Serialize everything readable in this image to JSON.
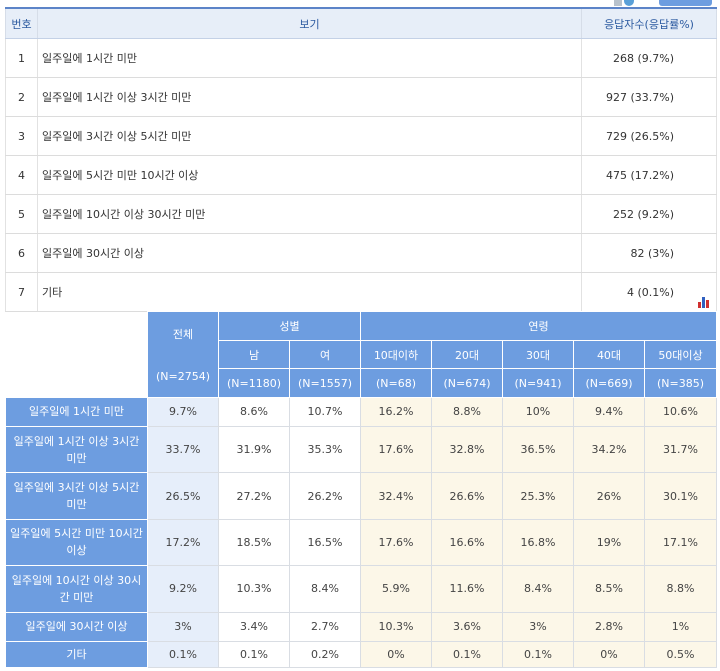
{
  "table1": {
    "headers": {
      "no": "번호",
      "option": "보기",
      "count": "응답자수(응답률%)"
    },
    "rows": [
      {
        "no": "1",
        "option": "일주일에 1시간 미만",
        "count": "268 (9.7%)"
      },
      {
        "no": "2",
        "option": "일주일에 1시간 이상 3시간 미만",
        "count": "927 (33.7%)"
      },
      {
        "no": "3",
        "option": "일주일에 3시간 이상 5시간 미만",
        "count": "729 (26.5%)"
      },
      {
        "no": "4",
        "option": "일주일에 5시간 미만 10시간 이상",
        "count": "475 (17.2%)"
      },
      {
        "no": "5",
        "option": "일주일에 10시간 이상 30시간 미만",
        "count": "252 (9.2%)"
      },
      {
        "no": "6",
        "option": "일주일에 30시간 이상",
        "count": "82 (3%)"
      },
      {
        "no": "7",
        "option": "기타",
        "count": "4 (0.1%)"
      }
    ]
  },
  "table2": {
    "header": {
      "total": "전체",
      "total_n": "(N=2754)",
      "gender": "성별",
      "age": "연령",
      "male": "남",
      "male_n": "(N=1180)",
      "female": "여",
      "female_n": "(N=1557)",
      "age10": "10대이하",
      "age10_n": "(N=68)",
      "age20": "20대",
      "age20_n": "(N=674)",
      "age30": "30대",
      "age30_n": "(N=941)",
      "age40": "40대",
      "age40_n": "(N=669)",
      "age50": "50대이상",
      "age50_n": "(N=385)"
    },
    "rows": [
      {
        "label": "일주일에 1시간 미만",
        "v": [
          "9.7%",
          "8.6%",
          "10.7%",
          "16.2%",
          "8.8%",
          "10%",
          "9.4%",
          "10.6%"
        ]
      },
      {
        "label": "일주일에 1시간 이상 3시간 미만",
        "v": [
          "33.7%",
          "31.9%",
          "35.3%",
          "17.6%",
          "32.8%",
          "36.5%",
          "34.2%",
          "31.7%"
        ]
      },
      {
        "label": "일주일에 3시간 이상 5시간 미만",
        "v": [
          "26.5%",
          "27.2%",
          "26.2%",
          "32.4%",
          "26.6%",
          "25.3%",
          "26%",
          "30.1%"
        ]
      },
      {
        "label": "일주일에 5시간 미만 10시간 이상",
        "v": [
          "17.2%",
          "18.5%",
          "16.5%",
          "17.6%",
          "16.6%",
          "16.8%",
          "19%",
          "17.1%"
        ]
      },
      {
        "label": "일주일에 10시간 이상 30시간 미만",
        "v": [
          "9.2%",
          "10.3%",
          "8.4%",
          "5.9%",
          "11.6%",
          "8.4%",
          "8.5%",
          "8.8%"
        ]
      },
      {
        "label": "일주일에 30시간 이상",
        "v": [
          "3%",
          "3.4%",
          "2.7%",
          "10.3%",
          "3.6%",
          "3%",
          "2.8%",
          "1%"
        ]
      },
      {
        "label": "기타",
        "v": [
          "0.1%",
          "0.1%",
          "0.2%",
          "0%",
          "0.1%",
          "0.1%",
          "0%",
          "0.5%"
        ]
      }
    ]
  },
  "chart_icon": {
    "name": "bar-chart-icon",
    "colors": [
      "#d03030",
      "#3060c0",
      "#d03030"
    ]
  }
}
